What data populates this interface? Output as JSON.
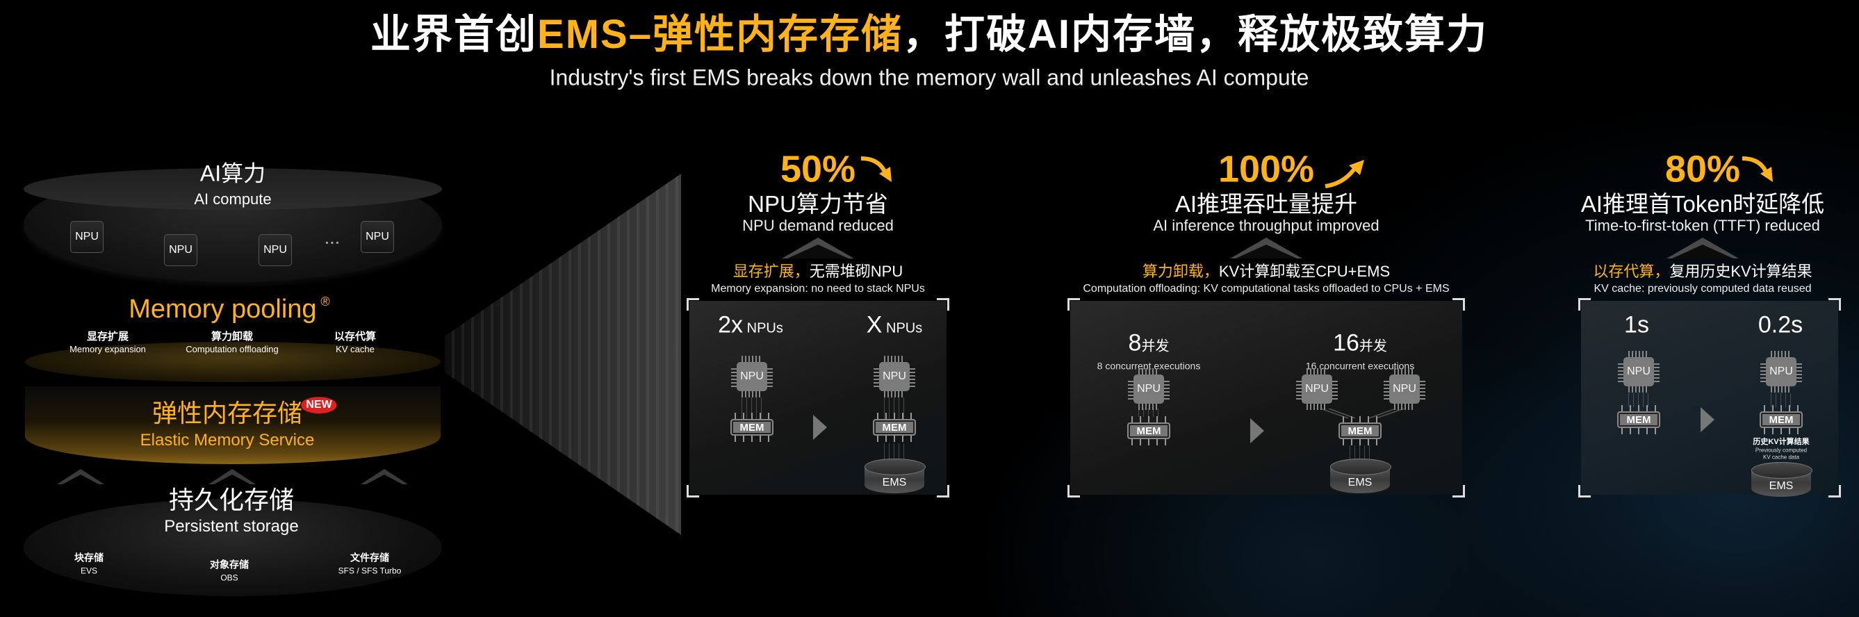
{
  "header": {
    "title_white_1": "业界首创",
    "title_gold": "EMS–弹性内存存储",
    "title_white_2": "，打破AI内存墙，释放极致算力",
    "subtitle": "Industry's first EMS breaks down the memory wall and unleashes AI compute"
  },
  "stack": {
    "compute": {
      "title": "AI算力",
      "subtitle": "AI compute",
      "npu_label": "NPU",
      "ellipsis": "• • •"
    },
    "pooling": {
      "title": "Memory pooling",
      "mark": "®",
      "items": [
        {
          "cn": "显存扩展",
          "en": "Memory expansion"
        },
        {
          "cn": "算力卸载",
          "en": "Computation offloading"
        },
        {
          "cn": "以存代算",
          "en": "KV cache"
        }
      ]
    },
    "ems": {
      "title": "弹性内存存储",
      "subtitle": "Elastic Memory Service",
      "badge": "NEW"
    },
    "persistent": {
      "title": "持久化存储",
      "subtitle": "Persistent storage",
      "items": [
        {
          "cn": "块存储",
          "en": "EVS"
        },
        {
          "cn": "对象存储",
          "en": "OBS"
        },
        {
          "cn": "文件存储",
          "en": "SFS / SFS Turbo"
        }
      ]
    }
  },
  "diagram": {
    "npu_label": "NPU",
    "mem_label": "MEM",
    "ems_label": "EMS"
  },
  "panels": [
    {
      "percent": "50%",
      "trend": "down",
      "title": "NPU算力节省",
      "title_en": "NPU demand reduced",
      "desc_hl": "显存扩展，",
      "desc": "无需堆砌NPU",
      "desc_en": "Memory expansion: no need to stack NPUs",
      "left_big": "2x",
      "left_small": " NPUs",
      "right_big": "X",
      "right_small": " NPUs"
    },
    {
      "percent": "100%",
      "trend": "up",
      "title": "AI推理吞吐量提升",
      "title_en": "AI inference throughput improved",
      "desc_hl": "算力卸载，",
      "desc": "KV计算卸载至CPU+EMS",
      "desc_en": "Computation offloading: KV computational tasks offloaded to CPUs + EMS",
      "left_big": "8",
      "left_small": "并发",
      "left_sub": "8 concurrent executions",
      "right_big": "16",
      "right_small": "并发",
      "right_sub": "16 concurrent executions"
    },
    {
      "percent": "80%",
      "trend": "down",
      "title": "AI推理首Token时延降低",
      "title_en": "Time-to-first-token (TTFT) reduced",
      "desc_hl": "以存代算，",
      "desc": "复用历史KV计算结果",
      "desc_en": "KV cache: previously computed data reused",
      "left_big": "1s",
      "right_big": "0.2s",
      "ems_note_cn": "历史KV计算结果",
      "ems_note_en_1": "Previously computed",
      "ems_note_en_2": "KV cache data"
    }
  ],
  "colors": {
    "accent": "#ffb21a",
    "badge": "#e02020",
    "background": "#000000"
  }
}
